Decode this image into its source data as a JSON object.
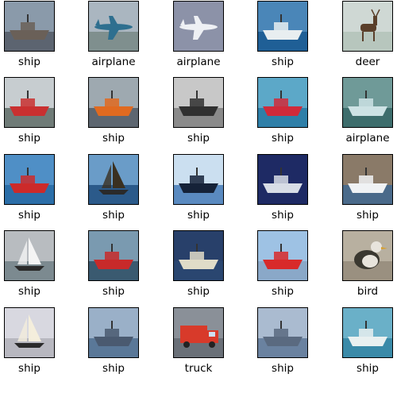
{
  "grid": {
    "rows": [
      [
        {
          "label": "ship",
          "icon": "ship-thumbnail",
          "sky": "#8a9aaa",
          "ground": "#5c6470",
          "obj": "#6a6058",
          "kind": "ship"
        },
        {
          "label": "airplane",
          "icon": "airplane-thumbnail",
          "sky": "#aab6c0",
          "ground": "#7f8f8e",
          "obj": "#2e6f8f",
          "kind": "plane"
        },
        {
          "label": "airplane",
          "icon": "airplane-thumbnail",
          "sky": "#8c92a8",
          "ground": "#8c92a8",
          "obj": "#eef0f4",
          "kind": "plane"
        },
        {
          "label": "ship",
          "icon": "ship-thumbnail",
          "sky": "#4a86b8",
          "ground": "#1f5f96",
          "obj": "#e8eef0",
          "kind": "ship"
        },
        {
          "label": "deer",
          "icon": "deer-thumbnail",
          "sky": "#cfd8d4",
          "ground": "#b7c6bd",
          "obj": "#5a3f2a",
          "kind": "deer"
        }
      ],
      [
        {
          "label": "ship",
          "icon": "ship-thumbnail",
          "sky": "#c7cdd0",
          "ground": "#6f7b77",
          "obj": "#c93030",
          "kind": "ship"
        },
        {
          "label": "ship",
          "icon": "ship-thumbnail",
          "sky": "#9ea9b0",
          "ground": "#5d6670",
          "obj": "#e06a20",
          "kind": "ship"
        },
        {
          "label": "ship",
          "icon": "ship-thumbnail",
          "sky": "#c8c8c8",
          "ground": "#8a8a8a",
          "obj": "#303030",
          "kind": "ship"
        },
        {
          "label": "ship",
          "icon": "ship-thumbnail",
          "sky": "#5ca8c8",
          "ground": "#2e7fa8",
          "obj": "#d02a3a",
          "kind": "ship"
        },
        {
          "label": "airplane",
          "icon": "airplane-thumbnail",
          "sky": "#6f9a98",
          "ground": "#3d6d6c",
          "obj": "#cde2e4",
          "kind": "ship"
        }
      ],
      [
        {
          "label": "ship",
          "icon": "ship-thumbnail",
          "sky": "#4f8fc6",
          "ground": "#2b6ea8",
          "obj": "#cc2a2a",
          "kind": "ship"
        },
        {
          "label": "ship",
          "icon": "ship-thumbnail",
          "sky": "#6a9cc8",
          "ground": "#2b5a8a",
          "obj": "#3a3020",
          "kind": "sail"
        },
        {
          "label": "ship",
          "icon": "ship-thumbnail",
          "sky": "#cbdff0",
          "ground": "#5a8ac0",
          "obj": "#152238",
          "kind": "ship"
        },
        {
          "label": "ship",
          "icon": "ship-thumbnail",
          "sky": "#1e2a64",
          "ground": "#1e2a64",
          "obj": "#d8dde6",
          "kind": "ship"
        },
        {
          "label": "ship",
          "icon": "ship-thumbnail",
          "sky": "#8a7a68",
          "ground": "#4a6a8a",
          "obj": "#f0f2f4",
          "kind": "ship"
        }
      ],
      [
        {
          "label": "ship",
          "icon": "ship-thumbnail",
          "sky": "#b8bcc0",
          "ground": "#7c8a90",
          "obj": "#f4f4f4",
          "kind": "sail"
        },
        {
          "label": "ship",
          "icon": "ship-thumbnail",
          "sky": "#7a9ab0",
          "ground": "#3a5a70",
          "obj": "#c82a2a",
          "kind": "ship"
        },
        {
          "label": "ship",
          "icon": "ship-thumbnail",
          "sky": "#28406a",
          "ground": "#2a4670",
          "obj": "#e0dcc8",
          "kind": "ship"
        },
        {
          "label": "ship",
          "icon": "ship-thumbnail",
          "sky": "#9ec2e4",
          "ground": "#8aa8c8",
          "obj": "#d82a2a",
          "kind": "ship"
        },
        {
          "label": "bird",
          "icon": "bird-thumbnail",
          "sky": "#b8b0a0",
          "ground": "#9a9080",
          "obj": "#3a3830",
          "kind": "bird"
        }
      ],
      [
        {
          "label": "ship",
          "icon": "ship-thumbnail",
          "sky": "#d8d8e0",
          "ground": "#b8b8c0",
          "obj": "#f4eedc",
          "kind": "sail"
        },
        {
          "label": "ship",
          "icon": "ship-thumbnail",
          "sky": "#9ab0c8",
          "ground": "#5a7898",
          "obj": "#4a5a70",
          "kind": "ship"
        },
        {
          "label": "truck",
          "icon": "truck-thumbnail",
          "sky": "#8a9098",
          "ground": "#6a7078",
          "obj": "#d83a2a",
          "kind": "truck"
        },
        {
          "label": "ship",
          "icon": "ship-thumbnail",
          "sky": "#aabbd0",
          "ground": "#6a82a0",
          "obj": "#5a6a80",
          "kind": "ship"
        },
        {
          "label": "ship",
          "icon": "ship-thumbnail",
          "sky": "#6ab0c8",
          "ground": "#3a8aa8",
          "obj": "#e8f0f0",
          "kind": "ship"
        }
      ]
    ]
  }
}
